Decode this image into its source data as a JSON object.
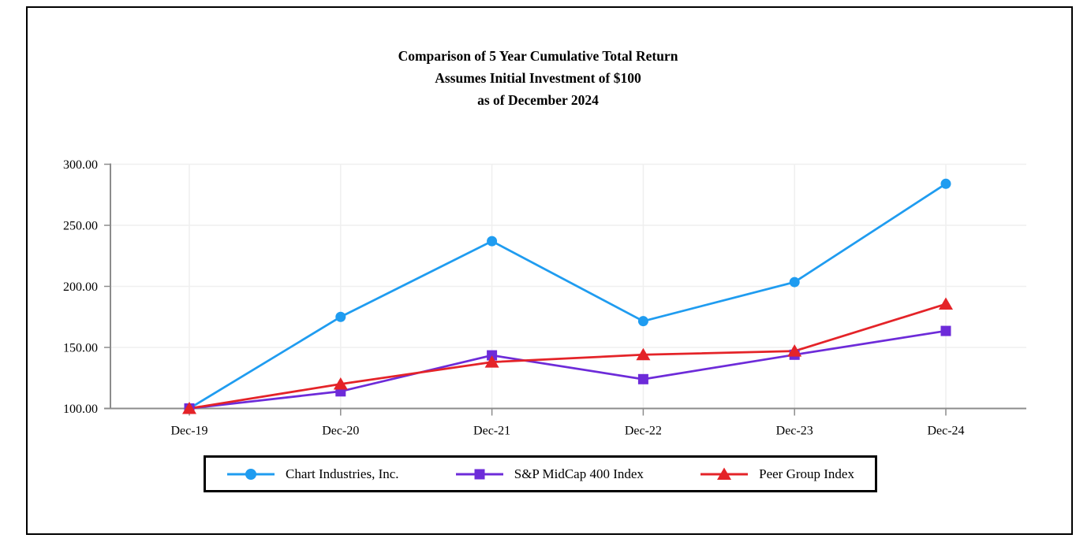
{
  "title": {
    "line1": "Comparison of 5 Year Cumulative Total Return",
    "line2": "Assumes Initial Investment of $100",
    "line3": "as of December 2024"
  },
  "chart_data": {
    "type": "line",
    "categories": [
      "Dec-19",
      "Dec-20",
      "Dec-21",
      "Dec-22",
      "Dec-23",
      "Dec-24"
    ],
    "series": [
      {
        "name": "Chart Industries, Inc.",
        "marker": "circle",
        "color": "#1F9CF0",
        "values": [
          100,
          175,
          237,
          171.5,
          203.5,
          284
        ]
      },
      {
        "name": "S&P MidCap 400 Index",
        "marker": "square",
        "color": "#6D2BD9",
        "values": [
          100,
          114,
          143.5,
          124,
          144,
          163.5
        ]
      },
      {
        "name": "Peer Group Index",
        "marker": "triangle",
        "color": "#E42328",
        "values": [
          100,
          120,
          138,
          144,
          147,
          185.5
        ]
      }
    ],
    "xlabel": "",
    "ylabel": "",
    "ylim": [
      100,
      300
    ],
    "y_ticks": [
      {
        "value": 100,
        "label": "100.00"
      },
      {
        "value": 150,
        "label": "150.00"
      },
      {
        "value": 200,
        "label": "200.00"
      },
      {
        "value": 250,
        "label": "250.00"
      },
      {
        "value": 300,
        "label": "300.00"
      }
    ],
    "grid": true,
    "legend_position": "bottom",
    "axis_color": "#8C8C8C",
    "grid_color": "#EFEFEF",
    "text_color": "#000000"
  }
}
